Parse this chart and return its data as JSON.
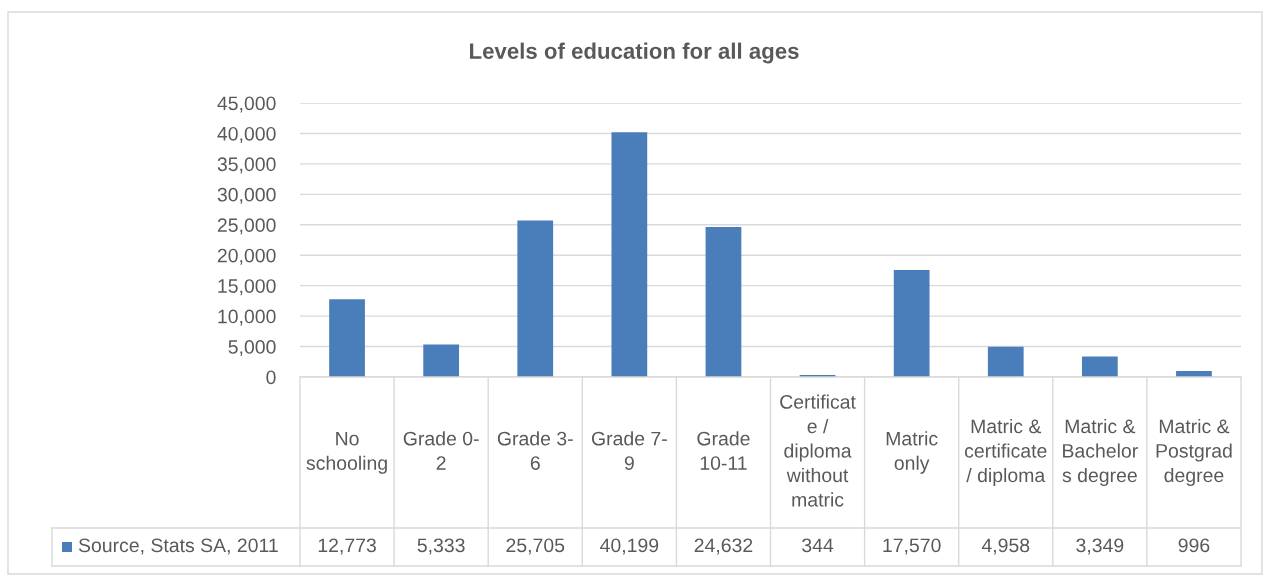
{
  "chart_data": {
    "type": "bar",
    "title": "Levels of education for all ages",
    "categories": [
      "No schooling",
      "Grade 0-2",
      "Grade 3-6",
      "Grade 7-9",
      "Grade 10-11",
      "Certificate / diploma without matric",
      "Matric only",
      "Matric & certificate / diploma",
      "Matric & Bachelors degree",
      "Matric & Postgrad degree"
    ],
    "series": [
      {
        "name": "Source, Stats SA, 2011",
        "color": "#4a7ebb",
        "values": [
          12773,
          5333,
          25705,
          40199,
          24632,
          344,
          17570,
          4958,
          3349,
          996
        ],
        "value_labels": [
          "12,773",
          "5,333",
          "25,705",
          "40,199",
          "24,632",
          "344",
          "17,570",
          "4,958",
          "3,349",
          "996"
        ]
      }
    ],
    "ylim": [
      0,
      45000
    ],
    "yticks": [
      0,
      {
        "value": 5000,
        "label": "5,000"
      },
      {
        "value": 10000,
        "label": "10,000"
      },
      {
        "value": 15000,
        "label": "15,000"
      },
      {
        "value": 20000,
        "label": "20,000"
      },
      {
        "value": 25000,
        "label": "25,000"
      },
      {
        "value": 30000,
        "label": "30,000"
      },
      {
        "value": 35000,
        "label": "35,000"
      },
      {
        "value": 40000,
        "label": "40,000"
      },
      {
        "value": 45000,
        "label": "45,000"
      }
    ],
    "grid": "y",
    "legend": "bottom"
  }
}
